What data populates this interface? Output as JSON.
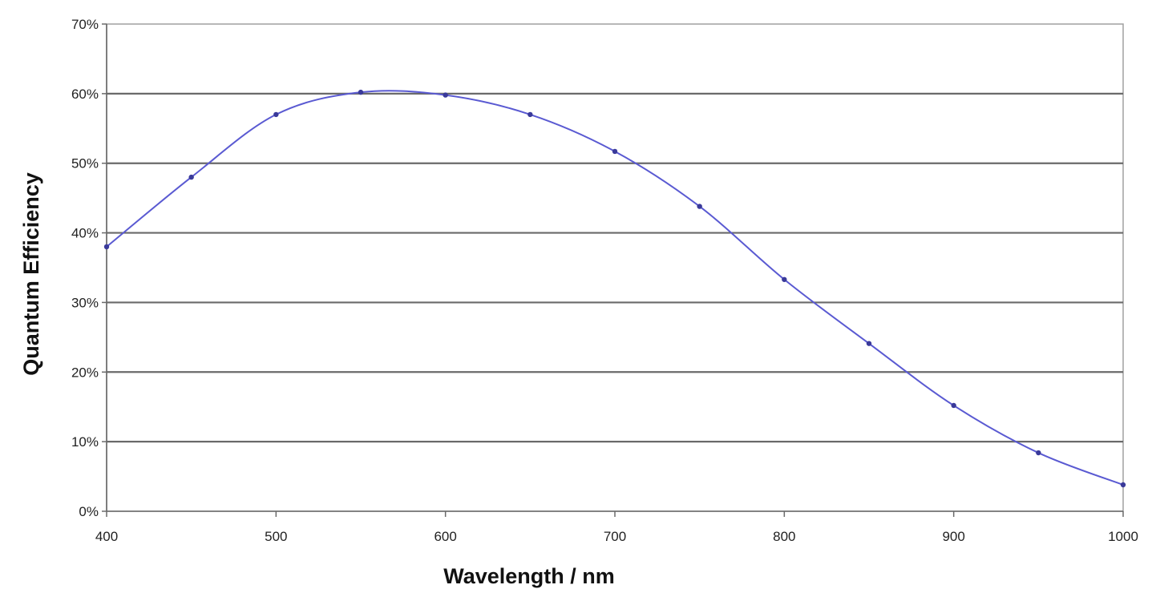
{
  "chart_data": {
    "type": "line",
    "xlabel": "Wavelength / nm",
    "ylabel": "Quantum Efficiency",
    "x_ticks": [
      "400",
      "500",
      "600",
      "700",
      "800",
      "900",
      "1000"
    ],
    "y_ticks": [
      "0%",
      "10%",
      "20%",
      "30%",
      "40%",
      "50%",
      "60%",
      "70%"
    ],
    "xlim": [
      400,
      1000
    ],
    "ylim": [
      0,
      70
    ],
    "grid": "horizontal",
    "legend": "none",
    "series": [
      {
        "x": [
          400,
          450,
          500,
          550,
          600,
          650,
          700,
          750,
          800,
          850,
          900,
          950,
          1000
        ],
        "y": [
          38,
          48,
          57,
          60.2,
          59.8,
          57,
          51.7,
          43.8,
          33.3,
          24.1,
          15.2,
          8.4,
          3.8
        ],
        "color": "#5a5ad2"
      }
    ]
  }
}
